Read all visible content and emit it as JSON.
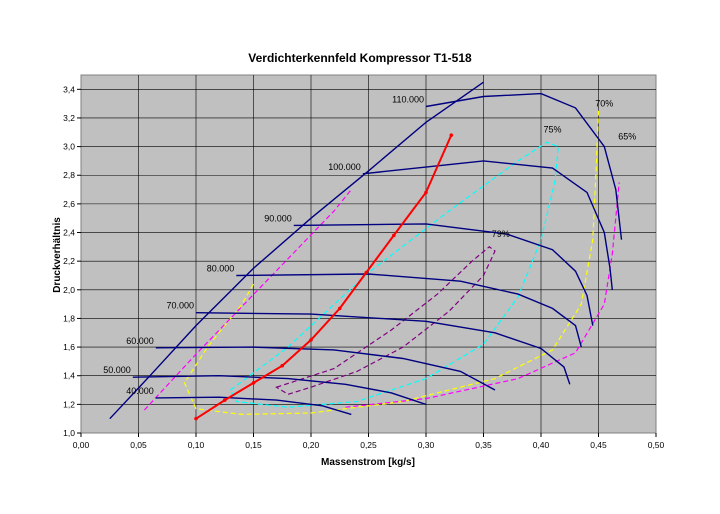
{
  "chart_data": {
    "type": "line",
    "title": "Verdichterkennfeld Kompressor T1-518",
    "xlabel": "Massenstrom [kg/s]",
    "ylabel": "Druckverhältnis",
    "xlim": [
      0,
      0.5
    ],
    "ylim": [
      1.0,
      3.5
    ],
    "grid": true,
    "plot_background": "#c0c0c0",
    "x_ticks": [
      "0,00",
      "0,05",
      "0,10",
      "0,15",
      "0,20",
      "0,25",
      "0,30",
      "0,35",
      "0,40",
      "0,45",
      "0,50"
    ],
    "y_ticks": [
      "1,0",
      "1,2",
      "1,4",
      "1,6",
      "1,8",
      "2,0",
      "2,2",
      "2,4",
      "2,6",
      "2,8",
      "3,0",
      "3,2",
      "3,4"
    ],
    "speed_lines": [
      {
        "label": "40.000",
        "color": "#000080",
        "points": [
          [
            0.065,
            1.245
          ],
          [
            0.12,
            1.25
          ],
          [
            0.17,
            1.23
          ],
          [
            0.21,
            1.19
          ],
          [
            0.235,
            1.13
          ]
        ]
      },
      {
        "label": "50.000",
        "color": "#000080",
        "points": [
          [
            0.045,
            1.39
          ],
          [
            0.12,
            1.4
          ],
          [
            0.18,
            1.38
          ],
          [
            0.23,
            1.34
          ],
          [
            0.27,
            1.28
          ],
          [
            0.3,
            1.2
          ]
        ]
      },
      {
        "label": "60.000",
        "color": "#000080",
        "points": [
          [
            0.065,
            1.595
          ],
          [
            0.15,
            1.6
          ],
          [
            0.22,
            1.58
          ],
          [
            0.28,
            1.52
          ],
          [
            0.33,
            1.43
          ],
          [
            0.36,
            1.3
          ]
        ]
      },
      {
        "label": "70.000",
        "color": "#000080",
        "points": [
          [
            0.1,
            1.84
          ],
          [
            0.2,
            1.83
          ],
          [
            0.3,
            1.78
          ],
          [
            0.36,
            1.7
          ],
          [
            0.4,
            1.59
          ],
          [
            0.42,
            1.46
          ],
          [
            0.425,
            1.34
          ]
        ]
      },
      {
        "label": "80.000",
        "color": "#000080",
        "points": [
          [
            0.135,
            2.1
          ],
          [
            0.25,
            2.11
          ],
          [
            0.33,
            2.06
          ],
          [
            0.38,
            1.97
          ],
          [
            0.41,
            1.87
          ],
          [
            0.43,
            1.75
          ],
          [
            0.435,
            1.6
          ]
        ]
      },
      {
        "label": "90.000",
        "color": "#000080",
        "points": [
          [
            0.185,
            2.45
          ],
          [
            0.3,
            2.46
          ],
          [
            0.37,
            2.39
          ],
          [
            0.41,
            2.28
          ],
          [
            0.43,
            2.13
          ],
          [
            0.44,
            1.96
          ],
          [
            0.445,
            1.75
          ]
        ]
      },
      {
        "label": "100.000",
        "color": "#000080",
        "points": [
          [
            0.245,
            2.81
          ],
          [
            0.35,
            2.9
          ],
          [
            0.41,
            2.85
          ],
          [
            0.44,
            2.68
          ],
          [
            0.455,
            2.4
          ],
          [
            0.46,
            2.15
          ],
          [
            0.462,
            2.0
          ]
        ]
      },
      {
        "label": "110.000",
        "color": "#000080",
        "points": [
          [
            0.3,
            3.28
          ],
          [
            0.35,
            3.35
          ],
          [
            0.4,
            3.37
          ],
          [
            0.43,
            3.27
          ],
          [
            0.455,
            3.0
          ],
          [
            0.465,
            2.7
          ],
          [
            0.47,
            2.35
          ]
        ]
      }
    ],
    "surge_line": {
      "color": "#000080",
      "points": [
        [
          0.025,
          1.1
        ],
        [
          0.06,
          1.4
        ],
        [
          0.1,
          1.75
        ],
        [
          0.15,
          2.15
        ],
        [
          0.2,
          2.5
        ],
        [
          0.25,
          2.83
        ],
        [
          0.3,
          3.17
        ],
        [
          0.35,
          3.45
        ]
      ]
    },
    "operating_line": {
      "color": "#ff0000",
      "points": [
        [
          0.1,
          1.1
        ],
        [
          0.125,
          1.23
        ],
        [
          0.15,
          1.35
        ],
        [
          0.175,
          1.47
        ],
        [
          0.2,
          1.65
        ],
        [
          0.225,
          1.87
        ],
        [
          0.248,
          2.12
        ],
        [
          0.272,
          2.38
        ],
        [
          0.3,
          2.68
        ],
        [
          0.322,
          3.08
        ]
      ]
    },
    "efficiency_islands": [
      {
        "label": "79%",
        "color": "#800080",
        "closed": true,
        "points": [
          [
            0.17,
            1.32
          ],
          [
            0.22,
            1.45
          ],
          [
            0.27,
            1.72
          ],
          [
            0.31,
            1.97
          ],
          [
            0.34,
            2.2
          ],
          [
            0.355,
            2.3
          ],
          [
            0.36,
            2.27
          ],
          [
            0.35,
            2.1
          ],
          [
            0.32,
            1.85
          ],
          [
            0.28,
            1.6
          ],
          [
            0.24,
            1.43
          ],
          [
            0.2,
            1.32
          ],
          [
            0.18,
            1.27
          ],
          [
            0.17,
            1.32
          ]
        ]
      },
      {
        "label": "75%",
        "color": "#00ffff",
        "closed": true,
        "points": [
          [
            0.13,
            1.3
          ],
          [
            0.18,
            1.6
          ],
          [
            0.25,
            2.12
          ],
          [
            0.32,
            2.55
          ],
          [
            0.38,
            2.9
          ],
          [
            0.405,
            3.03
          ],
          [
            0.415,
            3.0
          ],
          [
            0.412,
            2.75
          ],
          [
            0.4,
            2.35
          ],
          [
            0.38,
            1.95
          ],
          [
            0.35,
            1.62
          ],
          [
            0.3,
            1.38
          ],
          [
            0.24,
            1.22
          ],
          [
            0.18,
            1.18
          ],
          [
            0.135,
            1.22
          ],
          [
            0.13,
            1.3
          ]
        ]
      },
      {
        "label": "70%",
        "color": "#ffff00",
        "closed": false,
        "points": [
          [
            0.15,
            2.04
          ],
          [
            0.14,
            1.9
          ],
          [
            0.11,
            1.6
          ],
          [
            0.09,
            1.35
          ],
          [
            0.1,
            1.17
          ],
          [
            0.14,
            1.13
          ],
          [
            0.2,
            1.14
          ],
          [
            0.28,
            1.22
          ],
          [
            0.36,
            1.38
          ],
          [
            0.41,
            1.58
          ],
          [
            0.435,
            1.9
          ],
          [
            0.445,
            2.35
          ],
          [
            0.448,
            2.85
          ],
          [
            0.45,
            3.25
          ]
        ]
      },
      {
        "label": "65%",
        "color": "#ff00ff",
        "closed": false,
        "points": [
          [
            0.055,
            1.16
          ],
          [
            0.1,
            1.55
          ],
          [
            0.16,
            2.05
          ],
          [
            0.22,
            2.55
          ],
          [
            0.235,
            2.7
          ]
        ]
      },
      {
        "label": "",
        "color": "#ff00ff",
        "closed": false,
        "points": [
          [
            0.23,
            1.18
          ],
          [
            0.3,
            1.24
          ],
          [
            0.38,
            1.38
          ],
          [
            0.43,
            1.56
          ],
          [
            0.455,
            1.9
          ],
          [
            0.462,
            2.25
          ],
          [
            0.468,
            2.75
          ]
        ]
      }
    ],
    "legend": []
  }
}
